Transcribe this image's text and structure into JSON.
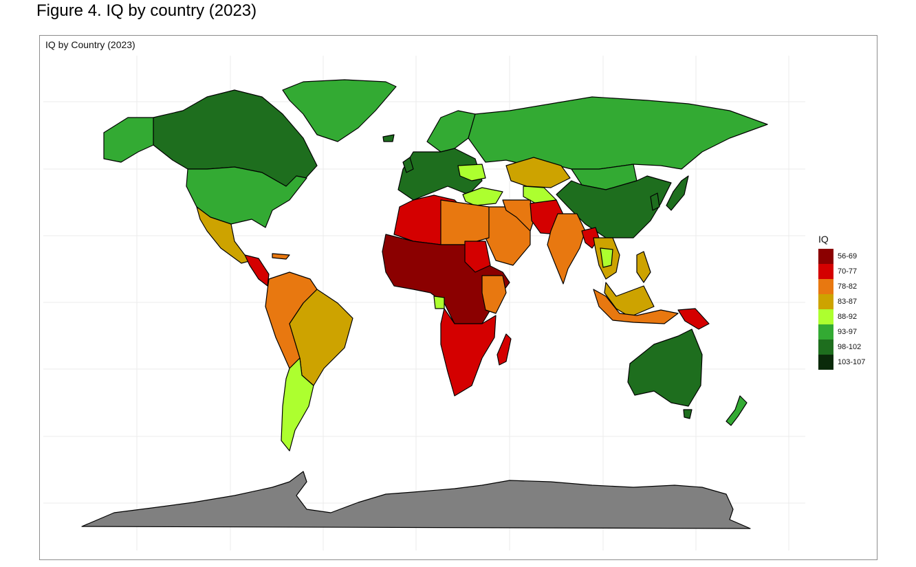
{
  "figure": {
    "title": "Figure 4. IQ by country (2023)"
  },
  "map": {
    "title": "IQ by Country (2023)",
    "no_data_color": "#808080",
    "border_color": "#000000",
    "regions": [
      {
        "name": "Canada",
        "band": "98-102"
      },
      {
        "name": "Alaska",
        "band": "93-97"
      },
      {
        "name": "Greenland",
        "band": "93-97"
      },
      {
        "name": "United States",
        "band": "93-97"
      },
      {
        "name": "Mexico",
        "band": "83-87"
      },
      {
        "name": "Central America",
        "band": "70-77"
      },
      {
        "name": "Colombia / Venezuela / Peru",
        "band": "78-82"
      },
      {
        "name": "Brazil",
        "band": "83-87"
      },
      {
        "name": "Argentina / Chile",
        "band": "88-92"
      },
      {
        "name": "Western Europe",
        "band": "98-102"
      },
      {
        "name": "Scandinavia",
        "band": "93-97"
      },
      {
        "name": "Russia",
        "band": "93-97"
      },
      {
        "name": "China",
        "band": "98-102"
      },
      {
        "name": "Mongolia",
        "band": "93-97"
      },
      {
        "name": "Kazakhstan",
        "band": "83-87"
      },
      {
        "name": "Japan",
        "band": "98-102"
      },
      {
        "name": "Turkey",
        "band": "88-92"
      },
      {
        "name": "Middle East",
        "band": "78-82"
      },
      {
        "name": "India",
        "band": "78-82"
      },
      {
        "name": "Pakistan / Afghanistan",
        "band": "70-77"
      },
      {
        "name": "North Africa",
        "band": "70-77"
      },
      {
        "name": "Egypt / Libya",
        "band": "78-82"
      },
      {
        "name": "West / Central Africa",
        "band": "56-69"
      },
      {
        "name": "Southern Africa",
        "band": "70-77"
      },
      {
        "name": "Madagascar",
        "band": "70-77"
      },
      {
        "name": "Southeast Asia",
        "band": "83-87"
      },
      {
        "name": "Indonesia",
        "band": "78-82"
      },
      {
        "name": "Papua New Guinea",
        "band": "70-77"
      },
      {
        "name": "Australia",
        "band": "98-102"
      },
      {
        "name": "New Zealand",
        "band": "93-97"
      },
      {
        "name": "Antarctica",
        "band": "no data"
      }
    ]
  },
  "legend": {
    "title": "IQ",
    "items": [
      {
        "label": "56-69",
        "color": "#8b0000"
      },
      {
        "label": "70-77",
        "color": "#d40000"
      },
      {
        "label": "78-82",
        "color": "#e87810"
      },
      {
        "label": "83-87",
        "color": "#cda300"
      },
      {
        "label": "88-92",
        "color": "#adff2f"
      },
      {
        "label": "93-97",
        "color": "#33aa33"
      },
      {
        "label": "98-102",
        "color": "#1e6e1e"
      },
      {
        "label": "103-107",
        "color": "#0a2a0a"
      }
    ]
  }
}
